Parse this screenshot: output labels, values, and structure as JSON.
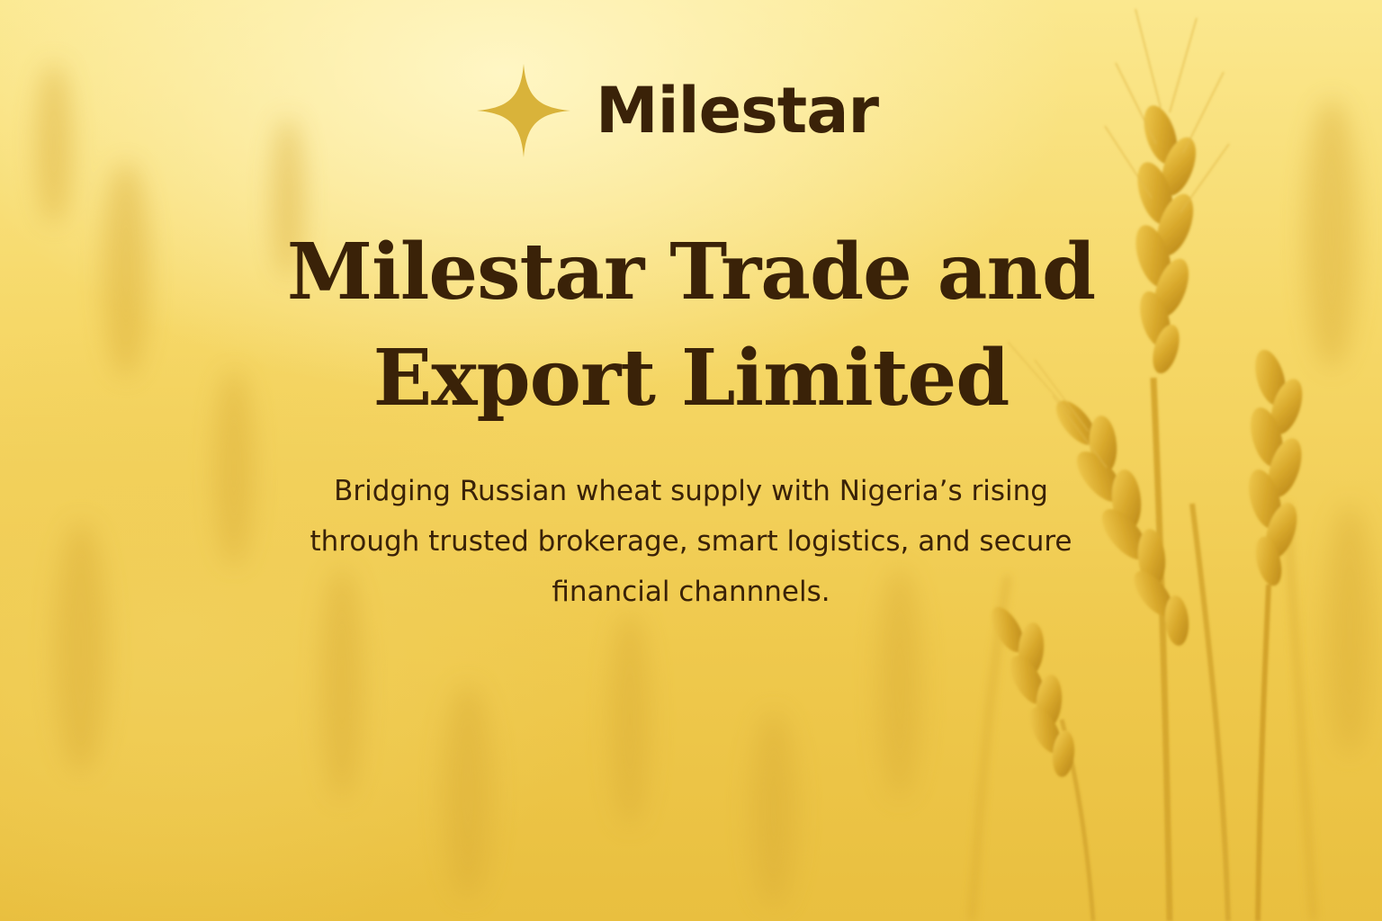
{
  "brand": {
    "name": "Milestar",
    "logo_icon": "sparkle-star-icon",
    "logo_color": "#d9b33a",
    "text_color": "#3a2208"
  },
  "hero": {
    "title_line1": "Milestar Trade and",
    "title_line2": "Export Limited",
    "subtitle_line1": "Bridging Russian wheat supply with Nigeria’s rising",
    "subtitle_line2": "through trusted brokerage, smart logistics, and secure",
    "subtitle_line3": "financial channnels."
  },
  "background": {
    "image": "wheat-field-image",
    "color_light": "#fbe88f",
    "color_dark": "#e9bf3f"
  }
}
